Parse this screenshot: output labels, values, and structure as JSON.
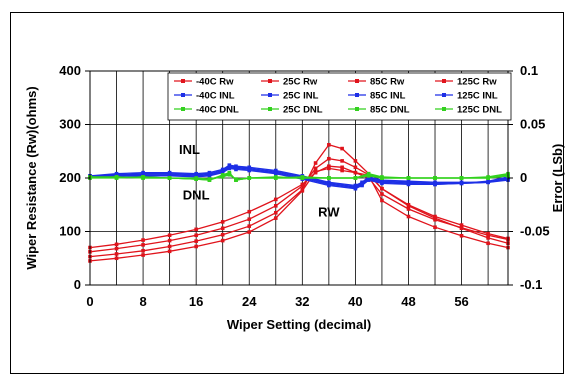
{
  "chart_data": {
    "type": "line",
    "title": "",
    "xlabel": "Wiper Setting (decimal)",
    "ylabel": "Wiper Resistance (Rw)(ohms)",
    "y2label": "Error (LSb)",
    "xlim": [
      0,
      63
    ],
    "ylim": [
      0,
      400
    ],
    "y2lim": [
      -0.1,
      0.1
    ],
    "xticks": [
      0,
      8,
      16,
      24,
      32,
      40,
      48,
      56
    ],
    "yticks": [
      0,
      100,
      200,
      300,
      400
    ],
    "y2ticks": [
      -0.1,
      -0.05,
      0,
      0.05,
      0.1
    ],
    "ytick_labels": [
      "0",
      "100",
      "200",
      "300",
      "400"
    ],
    "y2tick_labels": [
      "-0.1",
      "-0.05",
      "0",
      "0.05",
      "0.1"
    ],
    "xgrid": true,
    "legend_position": "top",
    "annotations": [
      {
        "text": "INL",
        "x": 15,
        "y": 245
      },
      {
        "text": "DNL",
        "x": 16,
        "y": 160
      },
      {
        "text": "RW",
        "x": 36,
        "y": 128
      }
    ],
    "colors": {
      "rw": "#e0141c",
      "inl": "#1d2fe6",
      "dnl": "#33d11e"
    },
    "series": [
      {
        "name": "-40C Rw",
        "group": "rw",
        "axis": "left",
        "x": [
          0,
          4,
          8,
          12,
          16,
          20,
          24,
          28,
          32,
          34,
          36,
          38,
          40,
          42,
          44,
          48,
          52,
          56,
          60,
          63
        ],
        "y": [
          70,
          76,
          84,
          93,
          104,
          118,
          137,
          160,
          188,
          210,
          222,
          220,
          210,
          200,
          170,
          142,
          122,
          107,
          93,
          85
        ]
      },
      {
        "name": "25C Rw",
        "group": "rw",
        "axis": "left",
        "x": [
          0,
          4,
          8,
          12,
          16,
          20,
          24,
          28,
          32,
          34,
          36,
          38,
          40,
          42,
          44,
          48,
          52,
          56,
          60,
          63
        ],
        "y": [
          62,
          68,
          75,
          83,
          93,
          106,
          123,
          148,
          185,
          218,
          236,
          232,
          220,
          206,
          180,
          150,
          128,
          112,
          96,
          87
        ]
      },
      {
        "name": "85C Rw",
        "group": "rw",
        "axis": "left",
        "x": [
          0,
          4,
          8,
          12,
          16,
          20,
          24,
          28,
          32,
          34,
          36,
          38,
          40,
          42,
          44,
          48,
          52,
          56,
          60,
          63
        ],
        "y": [
          53,
          58,
          64,
          72,
          82,
          94,
          110,
          135,
          178,
          228,
          262,
          255,
          232,
          208,
          180,
          148,
          125,
          106,
          88,
          78
        ]
      },
      {
        "name": "125C Rw",
        "group": "rw",
        "axis": "left",
        "x": [
          0,
          4,
          8,
          12,
          16,
          20,
          24,
          28,
          32,
          34,
          36,
          38,
          40,
          42,
          44,
          48,
          52,
          56,
          60,
          63
        ],
        "y": [
          45,
          50,
          56,
          63,
          72,
          83,
          99,
          125,
          176,
          212,
          218,
          214,
          210,
          205,
          158,
          128,
          108,
          92,
          78,
          70
        ]
      },
      {
        "name": "-40C INL",
        "group": "inl",
        "axis": "right",
        "x": [
          0,
          4,
          8,
          12,
          16,
          18,
          20,
          21,
          22,
          24,
          28,
          32,
          36,
          40,
          41,
          42,
          44,
          48,
          52,
          56,
          60,
          63
        ],
        "y": [
          0.002,
          0.004,
          0.005,
          0.005,
          0.004,
          0.005,
          0.008,
          0.012,
          0.011,
          0.01,
          0.007,
          0.002,
          -0.004,
          -0.007,
          -0.004,
          0.001,
          -0.002,
          -0.003,
          -0.004,
          -0.004,
          -0.004,
          -0.002
        ]
      },
      {
        "name": "25C INL",
        "group": "inl",
        "axis": "right",
        "x": [
          0,
          4,
          8,
          12,
          16,
          18,
          20,
          21,
          22,
          24,
          28,
          32,
          36,
          40,
          41,
          42,
          44,
          48,
          52,
          56,
          60,
          63
        ],
        "y": [
          0.002,
          0.003,
          0.004,
          0.004,
          0.003,
          0.004,
          0.007,
          0.011,
          0.01,
          0.009,
          0.006,
          0.001,
          -0.005,
          -0.008,
          -0.005,
          0,
          -0.003,
          -0.004,
          -0.005,
          -0.005,
          -0.004,
          -0.001
        ]
      },
      {
        "name": "85C INL",
        "group": "inl",
        "axis": "right",
        "x": [
          0,
          4,
          8,
          12,
          16,
          18,
          20,
          21,
          22,
          24,
          28,
          32,
          36,
          40,
          41,
          42,
          44,
          48,
          52,
          56,
          60,
          63
        ],
        "y": [
          0.001,
          0.003,
          0.003,
          0.003,
          0.002,
          0.003,
          0.006,
          0.01,
          0.009,
          0.008,
          0.005,
          0,
          -0.006,
          -0.009,
          -0.006,
          -0.001,
          -0.004,
          -0.005,
          -0.006,
          -0.005,
          -0.004,
          0
        ]
      },
      {
        "name": "125C INL",
        "group": "inl",
        "axis": "right",
        "x": [
          0,
          4,
          8,
          12,
          16,
          18,
          20,
          21,
          22,
          24,
          28,
          32,
          36,
          40,
          41,
          42,
          44,
          48,
          52,
          56,
          60,
          63
        ],
        "y": [
          0.001,
          0.002,
          0.002,
          0.002,
          0.001,
          0.002,
          0.005,
          0.009,
          0.008,
          0.007,
          0.004,
          -0.001,
          -0.007,
          -0.01,
          -0.007,
          -0.002,
          -0.005,
          -0.006,
          -0.006,
          -0.005,
          -0.003,
          0.001
        ]
      },
      {
        "name": "-40C DNL",
        "group": "dnl",
        "axis": "right",
        "x": [
          0,
          4,
          8,
          12,
          16,
          18,
          20,
          21,
          22,
          24,
          28,
          32,
          36,
          40,
          42,
          44,
          48,
          52,
          56,
          60,
          63
        ],
        "y": [
          0.001,
          0,
          0.001,
          0,
          -0.001,
          -0.002,
          0.003,
          0.005,
          -0.002,
          0,
          0.001,
          0,
          0,
          0,
          0.004,
          0.001,
          0,
          0,
          0,
          0.001,
          0.004
        ]
      },
      {
        "name": "25C DNL",
        "group": "dnl",
        "axis": "right",
        "x": [
          0,
          4,
          8,
          12,
          16,
          18,
          20,
          21,
          22,
          24,
          28,
          32,
          36,
          40,
          42,
          44,
          48,
          52,
          56,
          60,
          63
        ],
        "y": [
          0.001,
          0.001,
          0,
          0,
          -0.001,
          -0.002,
          0.002,
          0.004,
          -0.002,
          0,
          0,
          0.001,
          0,
          0,
          0.003,
          0,
          0,
          0,
          0,
          0,
          0.003
        ]
      },
      {
        "name": "85C DNL",
        "group": "dnl",
        "axis": "right",
        "x": [
          0,
          4,
          8,
          12,
          16,
          18,
          20,
          21,
          22,
          24,
          28,
          32,
          36,
          40,
          42,
          44,
          48,
          52,
          56,
          60,
          63
        ],
        "y": [
          0,
          0.001,
          0,
          0,
          -0.001,
          -0.001,
          0.002,
          0.004,
          -0.002,
          0,
          0,
          0,
          0,
          0,
          0.003,
          0,
          0,
          0,
          0,
          0,
          0.002
        ]
      },
      {
        "name": "125C DNL",
        "group": "dnl",
        "axis": "right",
        "x": [
          0,
          4,
          8,
          12,
          16,
          18,
          20,
          21,
          22,
          24,
          28,
          32,
          36,
          40,
          42,
          44,
          48,
          52,
          56,
          60,
          63
        ],
        "y": [
          0,
          0,
          0.001,
          0,
          0,
          -0.001,
          0.001,
          0.003,
          -0.001,
          0,
          0,
          0,
          0,
          0,
          0.002,
          0,
          0,
          0,
          0,
          0,
          0.002
        ]
      }
    ]
  }
}
